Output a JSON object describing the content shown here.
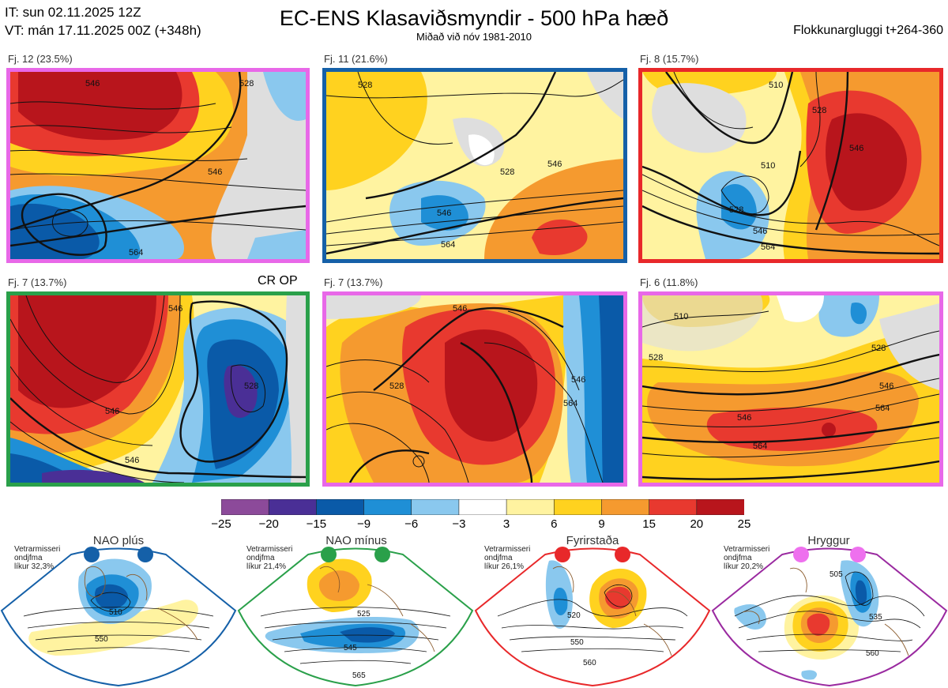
{
  "header": {
    "it_line": "IT: sun 02.11.2025 12Z",
    "vt_line": "VT: mán 17.11.2025 00Z  (+348h)",
    "title": "EC-ENS Klasaviðsmyndir - 500 hPa hæð",
    "subtitle": "Miðað við nóv 1981-2010",
    "window": "Flokkunargluggi t+264-360"
  },
  "colors": {
    "anomaly_scale": [
      "#8c4a9a",
      "#4a2f96",
      "#0a5aa8",
      "#1f8fd6",
      "#8ac8ee",
      "#ffffff",
      "#fff3a0",
      "#ffd21f",
      "#f59a2f",
      "#e8392f",
      "#b8151c"
    ],
    "land": "#dedede",
    "coast": "#8a5a2b",
    "contour": "#111111"
  },
  "panels": [
    {
      "label": "Fj. 12 (23.5%)",
      "border": "#e868e8",
      "op": "",
      "contours": [
        "546",
        "528",
        "546",
        "564"
      ]
    },
    {
      "label": "Fj. 11 (21.6%)",
      "border": "#1560a8",
      "op": "",
      "contours": [
        "528",
        "546",
        "564",
        "528",
        "546"
      ]
    },
    {
      "label": "Fj. 8 (15.7%)",
      "border": "#e8282a",
      "op": "",
      "contours": [
        "510",
        "528",
        "546",
        "510",
        "528",
        "546",
        "564"
      ]
    },
    {
      "label": "Fj. 7 (13.7%)",
      "border": "#2aa04a",
      "op": "CR OP",
      "contours": [
        "546",
        "528",
        "546",
        "546"
      ]
    },
    {
      "label": "Fj. 7 (13.7%)",
      "border": "#e868e8",
      "op": "",
      "contours": [
        "546",
        "528",
        "546",
        "564"
      ]
    },
    {
      "label": "Fj. 6 (11.8%)",
      "border": "#e868e8",
      "op": "",
      "contours": [
        "510",
        "528",
        "546",
        "564",
        "528",
        "546",
        "564"
      ]
    }
  ],
  "colorbar": {
    "ticks": [
      "−25",
      "−20",
      "−15",
      "−9",
      "−6",
      "−3",
      "3",
      "6",
      "9",
      "15",
      "20",
      "25"
    ]
  },
  "regimes": [
    {
      "title": "NAO plús",
      "note": [
        "Vetrarmisseri",
        "ondjfma",
        "líkur 32,3%"
      ],
      "color": "#1560a8",
      "contours": [
        "510",
        "550"
      ]
    },
    {
      "title": "NAO mínus",
      "note": [
        "Vetrarmisseri",
        "ondjfma",
        "líkur 21,4%"
      ],
      "color": "#2aa04a",
      "contours": [
        "525",
        "545",
        "565"
      ]
    },
    {
      "title": "Fyrirstaða",
      "note": [
        "Vetrarmisseri",
        "ondjfma",
        "líkur 26,1%"
      ],
      "color": "#e8282a",
      "contours": [
        "520",
        "550",
        "560"
      ]
    },
    {
      "title": "Hryggur",
      "note": [
        "Vetrarmisseri",
        "ondjfma",
        "líkur 20,2%"
      ],
      "color": "#9a2aa0",
      "dot_color": "#ee70ee",
      "contours": [
        "505",
        "535",
        "560"
      ]
    }
  ]
}
